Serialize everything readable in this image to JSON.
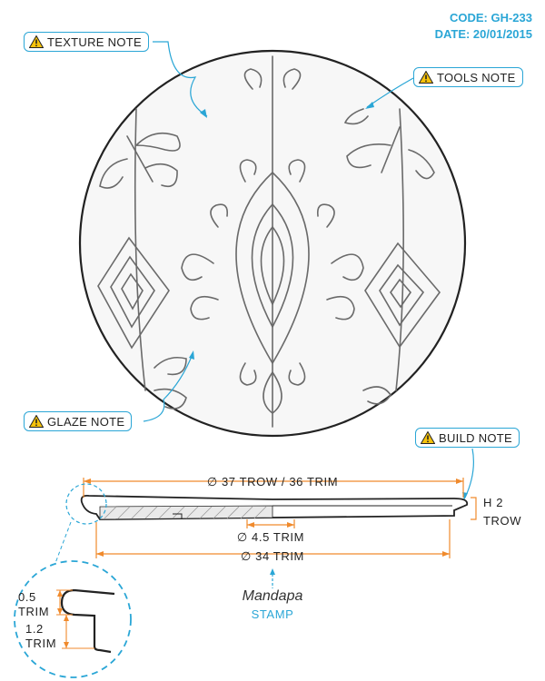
{
  "header": {
    "code": "CODE: GH-233",
    "date": "DATE: 20/01/2015"
  },
  "notes": {
    "texture": "TEXTURE NOTE",
    "tools": "TOOLS NOTE",
    "glaze": "GLAZE NOTE",
    "build": "BUILD NOTE"
  },
  "dimensions": {
    "overall": "∅ 37 TROW / 36 TRIM",
    "foot_inner": "∅ 4.5 TRIM",
    "foot": "∅ 34 TRIM",
    "height_line1": "H 2",
    "height_line2": "TROW"
  },
  "detail": {
    "rim_top_line1": "0.5",
    "rim_top_line2": "TRIM",
    "rim_side_line1": "1.2",
    "rim_side_line2": "TRIM"
  },
  "stamp": {
    "brand": "Mandapa",
    "label": "STAMP"
  },
  "colors": {
    "accent": "#2aa6d6",
    "dimension": "#f08a2c",
    "line": "#222222"
  },
  "icons": [
    "warning-icon"
  ]
}
